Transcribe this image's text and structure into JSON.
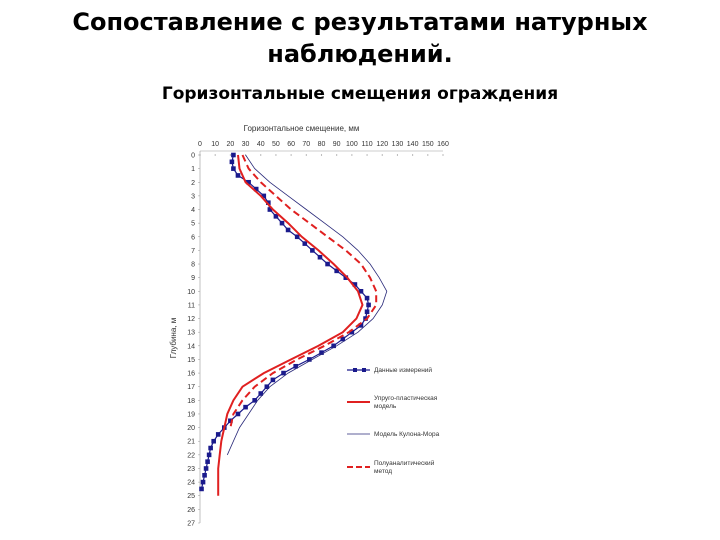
{
  "slide": {
    "title_line1": "Сопоставление с результатами натурных",
    "title_line2": "наблюдений."
  },
  "chart_data": {
    "type": "line",
    "title": "Горизонтальные смещения ограждения",
    "xlabel": "Горизонтальное смещение, мм",
    "ylabel": "Глубина, м",
    "xlim": [
      0,
      160
    ],
    "ylim": [
      0,
      27
    ],
    "x_ticks": [
      "0",
      "10",
      "20",
      "30",
      "40",
      "50",
      "60",
      "70",
      "80",
      "90",
      "100",
      "110",
      "120",
      "130",
      "140",
      "150",
      "160"
    ],
    "y_ticks": [
      "0",
      "1",
      "2",
      "3",
      "4",
      "5",
      "6",
      "7",
      "8",
      "9",
      "10",
      "11",
      "12",
      "13",
      "14",
      "15",
      "16",
      "17",
      "18",
      "19",
      "20",
      "21",
      "22",
      "23",
      "24",
      "25",
      "26",
      "27"
    ],
    "legend_position": "right",
    "series": [
      {
        "name": "Данные измерений",
        "color": "#1a1a8c",
        "style": "solid-square-markers",
        "points": [
          [
            22,
            0
          ],
          [
            21,
            0.5
          ],
          [
            22,
            1
          ],
          [
            25,
            1.5
          ],
          [
            32,
            2
          ],
          [
            37,
            2.5
          ],
          [
            42,
            3
          ],
          [
            45,
            3.5
          ],
          [
            46,
            4
          ],
          [
            50,
            4.5
          ],
          [
            54,
            5
          ],
          [
            58,
            5.5
          ],
          [
            64,
            6
          ],
          [
            69,
            6.5
          ],
          [
            74,
            7
          ],
          [
            79,
            7.5
          ],
          [
            84,
            8
          ],
          [
            90,
            8.5
          ],
          [
            96,
            9
          ],
          [
            102,
            9.5
          ],
          [
            106,
            10
          ],
          [
            110,
            10.5
          ],
          [
            111,
            11
          ],
          [
            110,
            11.5
          ],
          [
            109,
            12
          ],
          [
            106,
            12.5
          ],
          [
            100,
            13
          ],
          [
            94,
            13.5
          ],
          [
            88,
            14
          ],
          [
            80,
            14.5
          ],
          [
            72,
            15
          ],
          [
            63,
            15.5
          ],
          [
            55,
            16
          ],
          [
            48,
            16.5
          ],
          [
            44,
            17
          ],
          [
            40,
            17.5
          ],
          [
            36,
            18
          ],
          [
            30,
            18.5
          ],
          [
            25,
            19
          ],
          [
            20,
            19.5
          ],
          [
            16,
            20
          ],
          [
            12,
            20.5
          ],
          [
            9,
            21
          ],
          [
            7,
            21.5
          ],
          [
            6,
            22
          ],
          [
            5,
            22.5
          ],
          [
            4,
            23
          ],
          [
            3,
            23.5
          ],
          [
            2,
            24
          ],
          [
            1,
            24.5
          ]
        ]
      },
      {
        "name": "Упруго-пластическая модель",
        "color": "#e02020",
        "style": "solid",
        "points": [
          [
            25,
            0
          ],
          [
            26,
            1
          ],
          [
            30,
            2
          ],
          [
            40,
            3
          ],
          [
            48,
            4
          ],
          [
            58,
            5
          ],
          [
            67,
            6
          ],
          [
            78,
            7
          ],
          [
            88,
            8
          ],
          [
            97,
            9
          ],
          [
            104,
            10
          ],
          [
            107,
            11
          ],
          [
            103,
            12
          ],
          [
            94,
            13
          ],
          [
            78,
            14
          ],
          [
            60,
            15
          ],
          [
            42,
            16
          ],
          [
            28,
            17
          ],
          [
            22,
            18
          ],
          [
            18,
            19
          ],
          [
            16,
            20
          ],
          [
            14,
            21
          ],
          [
            13,
            22
          ],
          [
            12,
            23
          ],
          [
            12,
            24
          ],
          [
            12,
            25
          ]
        ]
      },
      {
        "name": "Модель Кулона-Мора",
        "color": "#2a2a7a",
        "style": "thin",
        "points": [
          [
            30,
            0
          ],
          [
            36,
            1
          ],
          [
            46,
            2
          ],
          [
            58,
            3
          ],
          [
            70,
            4
          ],
          [
            82,
            5
          ],
          [
            94,
            6
          ],
          [
            104,
            7
          ],
          [
            112,
            8
          ],
          [
            118,
            9
          ],
          [
            123,
            10
          ],
          [
            120,
            11
          ],
          [
            114,
            12
          ],
          [
            104,
            13
          ],
          [
            90,
            14
          ],
          [
            74,
            15
          ],
          [
            58,
            16
          ],
          [
            46,
            17
          ],
          [
            38,
            18
          ],
          [
            32,
            19
          ],
          [
            26,
            20
          ],
          [
            22,
            21
          ],
          [
            18,
            22
          ]
        ]
      },
      {
        "name": "Полуаналитический метод",
        "color": "#e02020",
        "style": "dashed",
        "points": [
          [
            28,
            0
          ],
          [
            32,
            1
          ],
          [
            40,
            2
          ],
          [
            50,
            3
          ],
          [
            60,
            4
          ],
          [
            72,
            5
          ],
          [
            84,
            6
          ],
          [
            96,
            7
          ],
          [
            106,
            8
          ],
          [
            112,
            9
          ],
          [
            116,
            10
          ],
          [
            116,
            11
          ],
          [
            110,
            12
          ],
          [
            98,
            13
          ],
          [
            82,
            14
          ],
          [
            64,
            15
          ],
          [
            48,
            16
          ],
          [
            36,
            17
          ],
          [
            28,
            18
          ],
          [
            22,
            19
          ],
          [
            20,
            20
          ]
        ]
      }
    ]
  }
}
